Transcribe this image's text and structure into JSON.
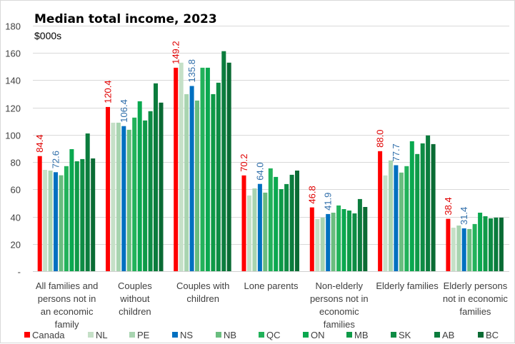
{
  "chart_data": {
    "type": "bar",
    "title": "Median total income, 2023",
    "subtitle": "$000s",
    "xlabel": "",
    "ylabel": "$000s",
    "ylim": [
      0,
      180
    ],
    "yticks": [
      0,
      20,
      40,
      60,
      80,
      100,
      120,
      140,
      160,
      180
    ],
    "ytick_labels": [
      "-",
      "20",
      "40",
      "60",
      "80",
      "100",
      "120",
      "140",
      "160",
      "180"
    ],
    "grid": true,
    "legend_position": "bottom",
    "categories": [
      [
        "All families and",
        "persons not in",
        "an economic",
        "family"
      ],
      [
        "Couples",
        "without",
        "children"
      ],
      [
        "Couples with",
        "children"
      ],
      [
        "Lone parents"
      ],
      [
        "Non-elderly",
        "persons not in",
        "economic",
        "families"
      ],
      [
        "Elderly families"
      ],
      [
        "Elderly persons",
        "not in economic",
        "families"
      ]
    ],
    "series": [
      {
        "name": "Canada",
        "color": "#FF0000",
        "label_color": "#E00000",
        "labeled": true,
        "values": [
          84.4,
          120.4,
          149.2,
          70.2,
          46.8,
          88.0,
          38.4
        ]
      },
      {
        "name": "NL",
        "color": "#C5E0C7",
        "label_color": "#404040",
        "labeled": false,
        "values": [
          74.3,
          108.9,
          152.9,
          55.5,
          38.2,
          70.2,
          31.9
        ]
      },
      {
        "name": "PE",
        "color": "#A8D4B0",
        "label_color": "#404040",
        "labeled": false,
        "values": [
          73.8,
          108.9,
          129.8,
          60.7,
          39.3,
          81.2,
          33.5
        ]
      },
      {
        "name": "NS",
        "color": "#0070C0",
        "label_color": "#2F6EAA",
        "labeled": true,
        "values": [
          72.6,
          106.4,
          135.8,
          64.0,
          41.9,
          77.7,
          31.4
        ]
      },
      {
        "name": "NB",
        "color": "#6ABD7F",
        "label_color": "#404040",
        "labeled": false,
        "values": [
          70.3,
          103.7,
          125.1,
          57.6,
          42.9,
          72.3,
          30.9
        ]
      },
      {
        "name": "QC",
        "color": "#22B25A",
        "label_color": "#404040",
        "labeled": false,
        "values": [
          77.0,
          112.6,
          149.2,
          75.4,
          48.2,
          77.0,
          34.6
        ]
      },
      {
        "name": "ON",
        "color": "#0AA84F",
        "label_color": "#404040",
        "labeled": false,
        "values": [
          89.5,
          124.6,
          149.2,
          69.1,
          45.5,
          95.3,
          42.9
        ]
      },
      {
        "name": "MB",
        "color": "#0E9A48",
        "label_color": "#404040",
        "labeled": false,
        "values": [
          80.6,
          110.5,
          129.8,
          60.2,
          44.5,
          85.9,
          40.3
        ]
      },
      {
        "name": "SK",
        "color": "#0D8C44",
        "label_color": "#404040",
        "labeled": false,
        "values": [
          82.2,
          117.3,
          138.2,
          63.9,
          42.4,
          93.7,
          38.7
        ]
      },
      {
        "name": "AB",
        "color": "#0B7C3D",
        "label_color": "#404040",
        "labeled": false,
        "values": [
          101.0,
          137.7,
          161.3,
          70.7,
          52.9,
          99.5,
          39.3
        ]
      },
      {
        "name": "BC",
        "color": "#0A6B34",
        "label_color": "#404040",
        "labeled": false,
        "values": [
          82.7,
          123.6,
          152.9,
          73.8,
          47.1,
          93.2,
          39.3
        ]
      }
    ],
    "data_labels": {
      "Canada": [
        "84.4",
        "120.4",
        "149.2",
        "70.2",
        "46.8",
        "88.0",
        "38.4"
      ],
      "NS": [
        "72.6",
        "106.4",
        "135.8",
        "64.0",
        "41.9",
        "77.7",
        "31.4"
      ]
    }
  }
}
